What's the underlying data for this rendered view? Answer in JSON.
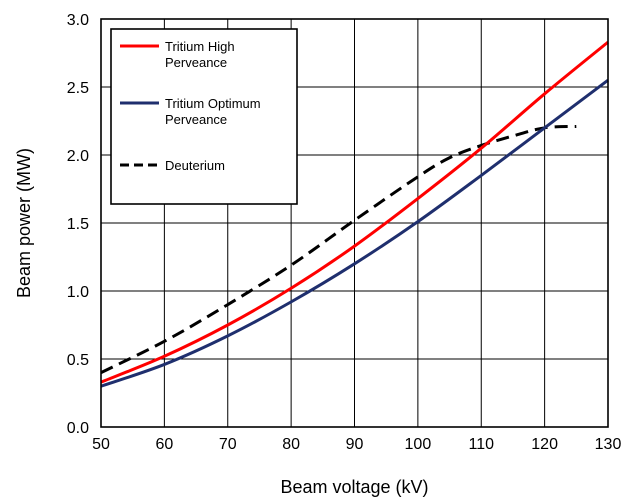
{
  "chart_data": {
    "type": "line",
    "title": "",
    "xlabel": "Beam voltage (kV)",
    "ylabel": "Beam power (MW)",
    "xlim": [
      50,
      130
    ],
    "ylim": [
      0,
      3
    ],
    "x_ticks": [
      "50",
      "60",
      "70",
      "80",
      "90",
      "100",
      "110",
      "120",
      "130"
    ],
    "y_ticks": [
      "0.0",
      "0.5",
      "1.0",
      "1.5",
      "2.0",
      "2.5",
      "3.0"
    ],
    "grid": true,
    "legend": {
      "placement": "top-left",
      "entries": [
        {
          "lines": [
            "Tritium High",
            "Perveance"
          ]
        },
        {
          "lines": [
            "Tritium Optimum",
            "Perveance"
          ]
        },
        {
          "lines": [
            "Deuterium"
          ]
        }
      ]
    },
    "series": [
      {
        "name": "Tritium High Perveance",
        "color": "#ff0000",
        "dash": "solid",
        "x": [
          50,
          60,
          70,
          80,
          90,
          100,
          110,
          120,
          130
        ],
        "y": [
          0.33,
          0.52,
          0.75,
          1.02,
          1.33,
          1.68,
          2.05,
          2.45,
          2.83
        ]
      },
      {
        "name": "Tritium Optimum Perveance",
        "color": "#1f2f6e",
        "dash": "solid",
        "x": [
          50,
          60,
          70,
          80,
          90,
          100,
          110,
          120,
          130
        ],
        "y": [
          0.3,
          0.46,
          0.67,
          0.92,
          1.2,
          1.51,
          1.85,
          2.2,
          2.55
        ]
      },
      {
        "name": "Deuterium",
        "color": "#000000",
        "dash": "dashed",
        "x": [
          50,
          60,
          70,
          80,
          90,
          100,
          105,
          110,
          115,
          120,
          125
        ],
        "y": [
          0.4,
          0.63,
          0.9,
          1.19,
          1.52,
          1.84,
          1.98,
          2.07,
          2.14,
          2.2,
          2.21
        ]
      }
    ]
  }
}
